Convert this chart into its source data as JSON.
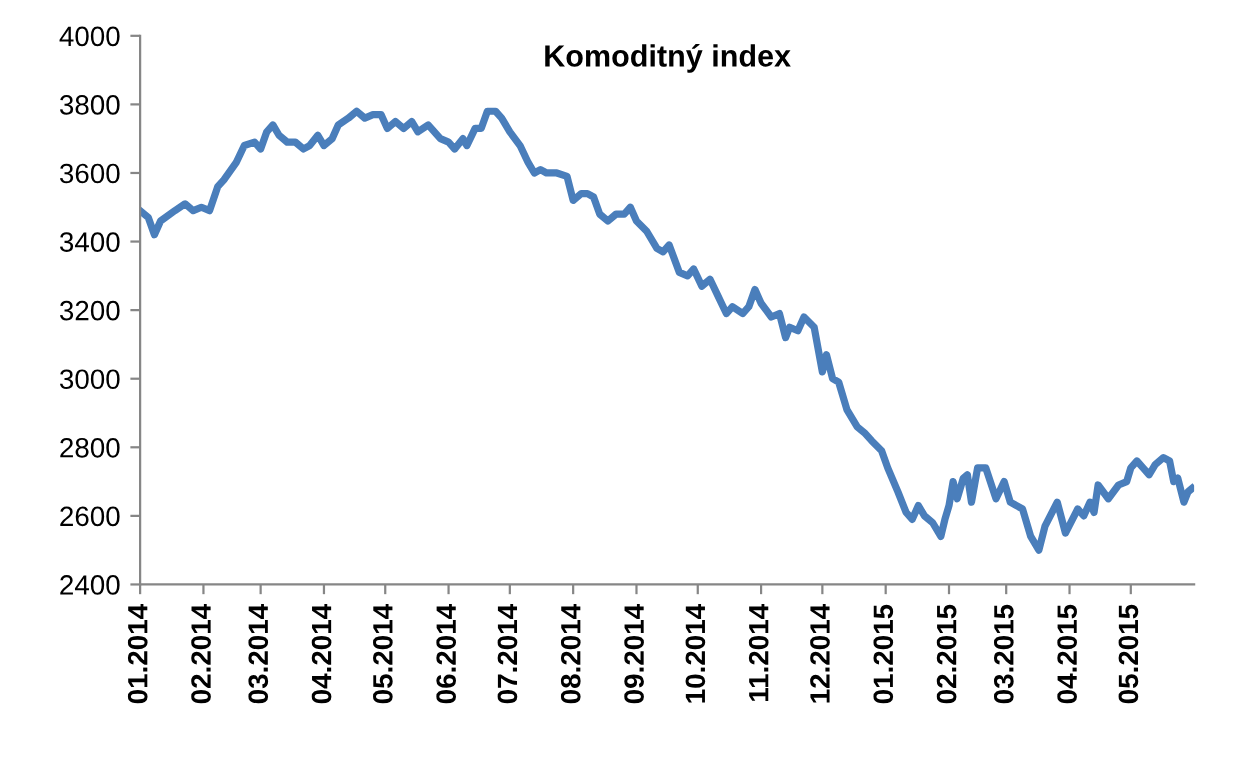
{
  "chart_data": {
    "type": "line",
    "title": "Komoditný index",
    "x": [
      "2014-01-01",
      "2014-01-05",
      "2014-01-08",
      "2014-01-11",
      "2014-01-18",
      "2014-01-23",
      "2014-01-27",
      "2014-01-31",
      "2014-02-04",
      "2014-02-08",
      "2014-02-11",
      "2014-02-17",
      "2014-02-21",
      "2014-02-26",
      "2014-03-01",
      "2014-03-04",
      "2014-03-07",
      "2014-03-10",
      "2014-03-14",
      "2014-03-18",
      "2014-03-22",
      "2014-03-25",
      "2014-03-29",
      "2014-04-01",
      "2014-04-05",
      "2014-04-08",
      "2014-04-13",
      "2014-04-17",
      "2014-04-21",
      "2014-04-25",
      "2014-04-29",
      "2014-05-02",
      "2014-05-06",
      "2014-05-10",
      "2014-05-14",
      "2014-05-17",
      "2014-05-22",
      "2014-05-28",
      "2014-06-01",
      "2014-06-04",
      "2014-06-08",
      "2014-06-10",
      "2014-06-14",
      "2014-06-17",
      "2014-06-20",
      "2014-06-24",
      "2014-06-27",
      "2014-07-01",
      "2014-07-06",
      "2014-07-10",
      "2014-07-13",
      "2014-07-16",
      "2014-07-19",
      "2014-07-24",
      "2014-07-29",
      "2014-08-01",
      "2014-08-05",
      "2014-08-08",
      "2014-08-11",
      "2014-08-14",
      "2014-08-18",
      "2014-08-22",
      "2014-08-26",
      "2014-08-29",
      "2014-09-01",
      "2014-09-06",
      "2014-09-11",
      "2014-09-14",
      "2014-09-17",
      "2014-09-22",
      "2014-09-26",
      "2014-09-29",
      "2014-10-03",
      "2014-10-07",
      "2014-10-11",
      "2014-10-15",
      "2014-10-18",
      "2014-10-23",
      "2014-10-26",
      "2014-10-29",
      "2014-11-01",
      "2014-11-06",
      "2014-11-10",
      "2014-11-13",
      "2014-11-15",
      "2014-11-19",
      "2014-11-22",
      "2014-11-27",
      "2014-12-01",
      "2014-12-03",
      "2014-12-06",
      "2014-12-09",
      "2014-12-13",
      "2014-12-18",
      "2014-12-22",
      "2014-12-25",
      "2014-12-30",
      "2015-01-02",
      "2015-01-07",
      "2015-01-11",
      "2015-01-14",
      "2015-01-17",
      "2015-01-20",
      "2015-01-24",
      "2015-01-28",
      "2015-01-30",
      "2015-02-01",
      "2015-02-03",
      "2015-02-05",
      "2015-02-08",
      "2015-02-10",
      "2015-02-12",
      "2015-02-15",
      "2015-02-19",
      "2015-02-24",
      "2015-02-28",
      "2015-03-03",
      "2015-03-09",
      "2015-03-13",
      "2015-03-17",
      "2015-03-20",
      "2015-03-26",
      "2015-03-30",
      "2015-04-05",
      "2015-04-08",
      "2015-04-11",
      "2015-04-13",
      "2015-04-15",
      "2015-04-20",
      "2015-04-25",
      "2015-04-29",
      "2015-05-01",
      "2015-05-04",
      "2015-05-07",
      "2015-05-10",
      "2015-05-13",
      "2015-05-17",
      "2015-05-20",
      "2015-05-22",
      "2015-05-24",
      "2015-05-27",
      "2015-05-29",
      "2015-05-31"
    ],
    "series": [
      {
        "color": "#4a7ebb",
        "values": [
          3490,
          3470,
          3420,
          3460,
          3490,
          3510,
          3490,
          3500,
          3490,
          3560,
          3580,
          3630,
          3680,
          3690,
          3670,
          3720,
          3740,
          3710,
          3690,
          3690,
          3670,
          3680,
          3710,
          3680,
          3700,
          3740,
          3760,
          3780,
          3760,
          3770,
          3770,
          3730,
          3750,
          3730,
          3750,
          3720,
          3740,
          3700,
          3690,
          3670,
          3700,
          3680,
          3730,
          3730,
          3780,
          3780,
          3760,
          3720,
          3680,
          3630,
          3600,
          3610,
          3600,
          3600,
          3590,
          3520,
          3540,
          3540,
          3530,
          3480,
          3460,
          3480,
          3480,
          3500,
          3460,
          3430,
          3380,
          3370,
          3390,
          3310,
          3300,
          3320,
          3270,
          3290,
          3240,
          3190,
          3210,
          3190,
          3210,
          3260,
          3220,
          3180,
          3190,
          3120,
          3150,
          3140,
          3180,
          3150,
          3020,
          3070,
          3000,
          2990,
          2910,
          2860,
          2840,
          2820,
          2790,
          2740,
          2670,
          2610,
          2590,
          2630,
          2600,
          2580,
          2540,
          2590,
          2630,
          2700,
          2650,
          2710,
          2720,
          2640,
          2740,
          2740,
          2650,
          2700,
          2640,
          2620,
          2540,
          2500,
          2570,
          2640,
          2550,
          2620,
          2600,
          2640,
          2610,
          2690,
          2650,
          2690,
          2700,
          2740,
          2760,
          2740,
          2720,
          2750,
          2770,
          2760,
          2700,
          2710,
          2640,
          2670,
          2680
        ]
      }
    ],
    "xlim": [
      "2014-01-01",
      "2015-06-01"
    ],
    "xticks": [
      {
        "value": "2014-01-01",
        "label": "01.2014"
      },
      {
        "value": "2014-02-01",
        "label": "02.2014"
      },
      {
        "value": "2014-03-01",
        "label": "03.2014"
      },
      {
        "value": "2014-04-01",
        "label": "04.2014"
      },
      {
        "value": "2014-05-01",
        "label": "05.2014"
      },
      {
        "value": "2014-06-01",
        "label": "06.2014"
      },
      {
        "value": "2014-07-01",
        "label": "07.2014"
      },
      {
        "value": "2014-08-01",
        "label": "08.2014"
      },
      {
        "value": "2014-09-01",
        "label": "09.2014"
      },
      {
        "value": "2014-10-01",
        "label": "10.2014"
      },
      {
        "value": "2014-11-01",
        "label": "11.2014"
      },
      {
        "value": "2014-12-01",
        "label": "12.2014"
      },
      {
        "value": "2015-01-01",
        "label": "01.2015"
      },
      {
        "value": "2015-02-01",
        "label": "02.2015"
      },
      {
        "value": "2015-03-01",
        "label": "03.2015"
      },
      {
        "value": "2015-04-01",
        "label": "04.2015"
      },
      {
        "value": "2015-05-01",
        "label": "05.2015"
      }
    ],
    "ylim": [
      2400,
      4000
    ],
    "yticks": [
      2400,
      2600,
      2800,
      3000,
      3200,
      3400,
      3600,
      3800,
      4000
    ],
    "grid": false,
    "marker": "none",
    "line_style": "solid"
  }
}
